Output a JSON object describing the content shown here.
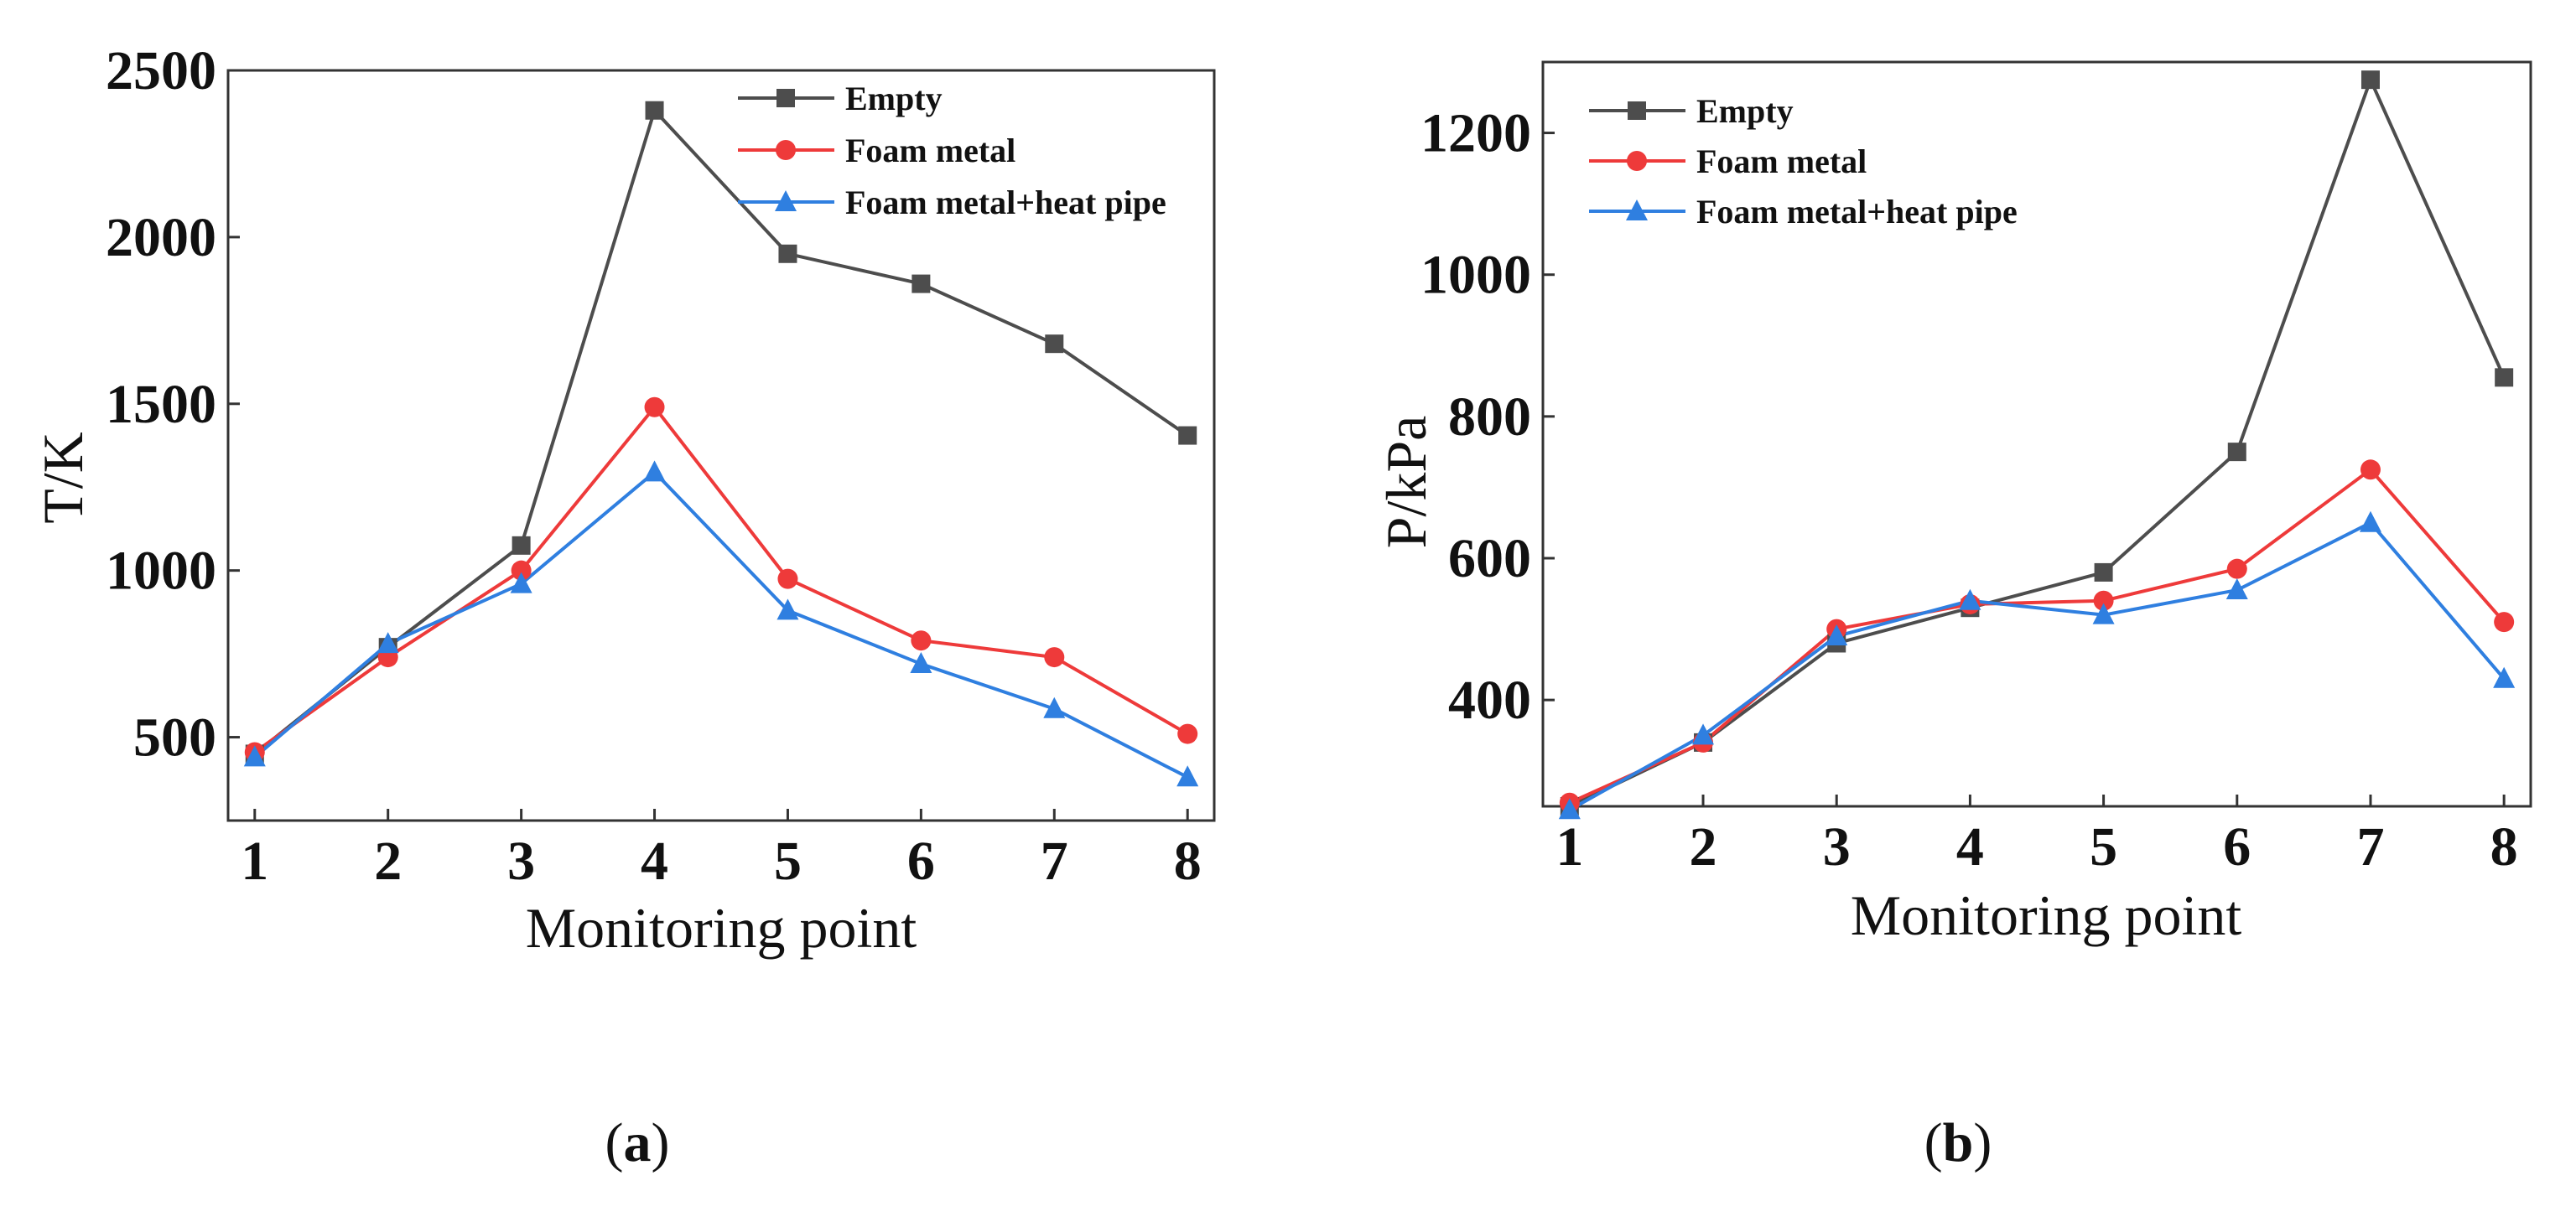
{
  "figure": {
    "panels": [
      {
        "open": "(",
        "letter": "a",
        "close": ")"
      },
      {
        "open": "(",
        "letter": "b",
        "close": ")"
      }
    ]
  },
  "chart_data": [
    {
      "type": "line",
      "panel": "a",
      "title": "",
      "xlabel": "Monitoring point",
      "ylabel": "T/K",
      "x": [
        1,
        2,
        3,
        4,
        5,
        6,
        7,
        8
      ],
      "xlim": [
        0.8,
        8.2
      ],
      "ylim": [
        250,
        2500
      ],
      "yticks": [
        500,
        1000,
        1500,
        2000,
        2500
      ],
      "grid": false,
      "legend_position": "top-right",
      "series": [
        {
          "name": "Empty",
          "color": "#4d4d4d",
          "marker": "square",
          "values": [
            450,
            770,
            1075,
            2380,
            1950,
            1860,
            1680,
            1405
          ]
        },
        {
          "name": "Foam metal",
          "color": "#ee3a3a",
          "marker": "circle",
          "values": [
            455,
            740,
            1000,
            1490,
            975,
            790,
            740,
            510
          ]
        },
        {
          "name": "Foam metal+heat pipe",
          "color": "#2f7fe0",
          "marker": "triangle",
          "values": [
            440,
            780,
            960,
            1295,
            880,
            720,
            585,
            380
          ]
        }
      ]
    },
    {
      "type": "line",
      "panel": "b",
      "title": "",
      "xlabel": "Monitoring point",
      "ylabel": "P/kPa",
      "x": [
        1,
        2,
        3,
        4,
        5,
        6,
        7,
        8
      ],
      "xlim": [
        0.8,
        8.2
      ],
      "ylim": [
        250,
        1300
      ],
      "yticks": [
        400,
        600,
        800,
        1000,
        1200
      ],
      "grid": false,
      "legend_position": "top-left",
      "series": [
        {
          "name": "Empty",
          "color": "#4d4d4d",
          "marker": "square",
          "values": [
            250,
            340,
            480,
            530,
            580,
            750,
            1275,
            855
          ]
        },
        {
          "name": "Foam metal",
          "color": "#ee3a3a",
          "marker": "circle",
          "values": [
            255,
            340,
            500,
            535,
            540,
            585,
            725,
            510
          ]
        },
        {
          "name": "Foam metal+heat pipe",
          "color": "#2f7fe0",
          "marker": "triangle",
          "values": [
            245,
            350,
            490,
            540,
            520,
            555,
            650,
            430
          ]
        }
      ]
    }
  ]
}
